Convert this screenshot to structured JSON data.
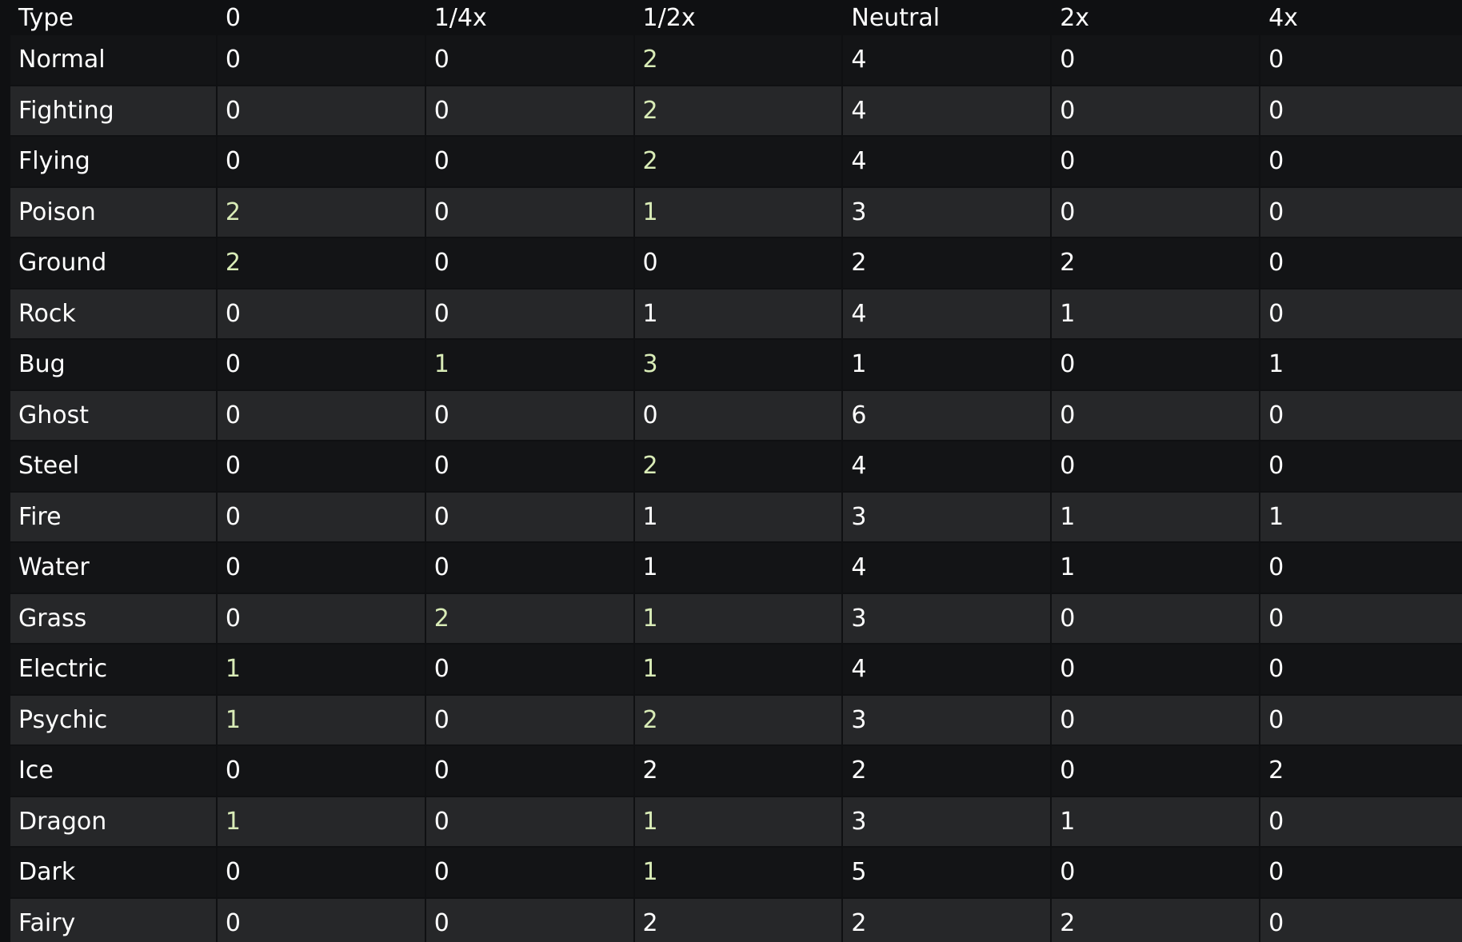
{
  "colors": {
    "green": "#76ab32",
    "lightgreen": "#9cd84d",
    "orange": "#c5613b",
    "darkorange": "#9b3813",
    "row_dark": "#131416",
    "row_light": "#262729"
  },
  "table": {
    "headers": [
      "Type",
      "0",
      "1/4x",
      "1/2x",
      "Neutral",
      "2x",
      "4x"
    ],
    "rows": [
      {
        "type": "Normal",
        "values": [
          "0",
          "0",
          "2",
          "4",
          "0",
          "0"
        ],
        "highlights": [
          "",
          "",
          "green",
          "",
          "",
          ""
        ]
      },
      {
        "type": "Fighting",
        "values": [
          "0",
          "0",
          "2",
          "4",
          "0",
          "0"
        ],
        "highlights": [
          "",
          "",
          "green",
          "",
          "",
          ""
        ]
      },
      {
        "type": "Flying",
        "values": [
          "0",
          "0",
          "2",
          "4",
          "0",
          "0"
        ],
        "highlights": [
          "",
          "",
          "green",
          "",
          "",
          ""
        ]
      },
      {
        "type": "Poison",
        "values": [
          "2",
          "0",
          "1",
          "3",
          "0",
          "0"
        ],
        "highlights": [
          "green",
          "",
          "green",
          "",
          "",
          ""
        ]
      },
      {
        "type": "Ground",
        "values": [
          "2",
          "0",
          "0",
          "2",
          "2",
          "0"
        ],
        "highlights": [
          "green",
          "",
          "",
          "",
          "orange",
          ""
        ]
      },
      {
        "type": "Rock",
        "values": [
          "0",
          "0",
          "1",
          "4",
          "1",
          "0"
        ],
        "highlights": [
          "",
          "",
          "lightgreen",
          "",
          "orange",
          ""
        ]
      },
      {
        "type": "Bug",
        "values": [
          "0",
          "1",
          "3",
          "1",
          "0",
          "1"
        ],
        "highlights": [
          "",
          "green",
          "green",
          "",
          "",
          "orange"
        ]
      },
      {
        "type": "Ghost",
        "values": [
          "0",
          "0",
          "0",
          "6",
          "0",
          "0"
        ],
        "highlights": [
          "",
          "",
          "",
          "",
          "",
          ""
        ]
      },
      {
        "type": "Steel",
        "values": [
          "0",
          "0",
          "2",
          "4",
          "0",
          "0"
        ],
        "highlights": [
          "",
          "",
          "green",
          "",
          "",
          ""
        ]
      },
      {
        "type": "Fire",
        "values": [
          "0",
          "0",
          "1",
          "3",
          "1",
          "1"
        ],
        "highlights": [
          "",
          "",
          "lightgreen",
          "",
          "darkorange",
          "darkorange"
        ]
      },
      {
        "type": "Water",
        "values": [
          "0",
          "0",
          "1",
          "4",
          "1",
          "0"
        ],
        "highlights": [
          "",
          "",
          "lightgreen",
          "",
          "orange",
          ""
        ]
      },
      {
        "type": "Grass",
        "values": [
          "0",
          "2",
          "1",
          "3",
          "0",
          "0"
        ],
        "highlights": [
          "",
          "green",
          "green",
          "",
          "",
          ""
        ]
      },
      {
        "type": "Electric",
        "values": [
          "1",
          "0",
          "1",
          "4",
          "0",
          "0"
        ],
        "highlights": [
          "green",
          "",
          "green",
          "",
          "",
          ""
        ]
      },
      {
        "type": "Psychic",
        "values": [
          "1",
          "0",
          "2",
          "3",
          "0",
          "0"
        ],
        "highlights": [
          "green",
          "",
          "green",
          "",
          "",
          ""
        ]
      },
      {
        "type": "Ice",
        "values": [
          "0",
          "0",
          "2",
          "2",
          "0",
          "2"
        ],
        "highlights": [
          "",
          "",
          "lightgreen",
          "",
          "",
          "darkorange"
        ]
      },
      {
        "type": "Dragon",
        "values": [
          "1",
          "0",
          "1",
          "3",
          "1",
          "0"
        ],
        "highlights": [
          "green",
          "",
          "green",
          "",
          "orange",
          ""
        ]
      },
      {
        "type": "Dark",
        "values": [
          "0",
          "0",
          "1",
          "5",
          "0",
          "0"
        ],
        "highlights": [
          "",
          "",
          "green",
          "",
          "",
          ""
        ]
      },
      {
        "type": "Fairy",
        "values": [
          "0",
          "0",
          "2",
          "2",
          "2",
          "0"
        ],
        "highlights": [
          "",
          "",
          "lightgreen",
          "",
          "orange",
          ""
        ]
      }
    ]
  }
}
